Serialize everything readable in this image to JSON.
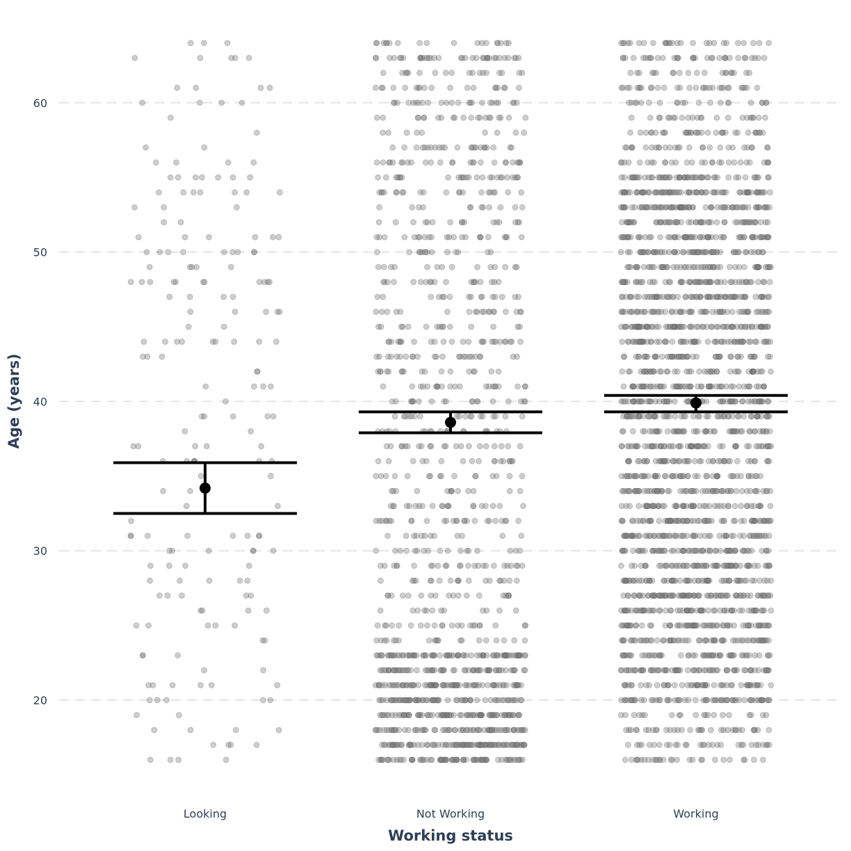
{
  "chart_data": {
    "type": "scatter",
    "subtype": "jittered strip plot with mean and error bars",
    "title": "",
    "xlabel": "Working status",
    "ylabel": "Age (years)",
    "categories": [
      "Looking",
      "Not Working",
      "Working"
    ],
    "ylim": [
      14.5,
      65.5
    ],
    "yticks": [
      20,
      30,
      40,
      50,
      60
    ],
    "grid": "horizontal dashed",
    "point_color": "#7f7f7f",
    "text_color": "#2e4057",
    "summary": [
      {
        "category": "Looking",
        "mean": 34.2,
        "lower": 32.5,
        "upper": 35.9
      },
      {
        "category": "Not Working",
        "mean": 38.6,
        "lower": 37.9,
        "upper": 39.3
      },
      {
        "category": "Working",
        "mean": 39.9,
        "lower": 39.3,
        "upper": 40.4
      }
    ],
    "points": [
      {
        "category": "Looking",
        "count": 200,
        "age_range": [
          16,
          64
        ]
      },
      {
        "category": "Not Working",
        "count": 1400,
        "age_range": [
          16,
          64
        ]
      },
      {
        "category": "Working",
        "count": 2600,
        "age_range": [
          16,
          64
        ]
      }
    ]
  }
}
